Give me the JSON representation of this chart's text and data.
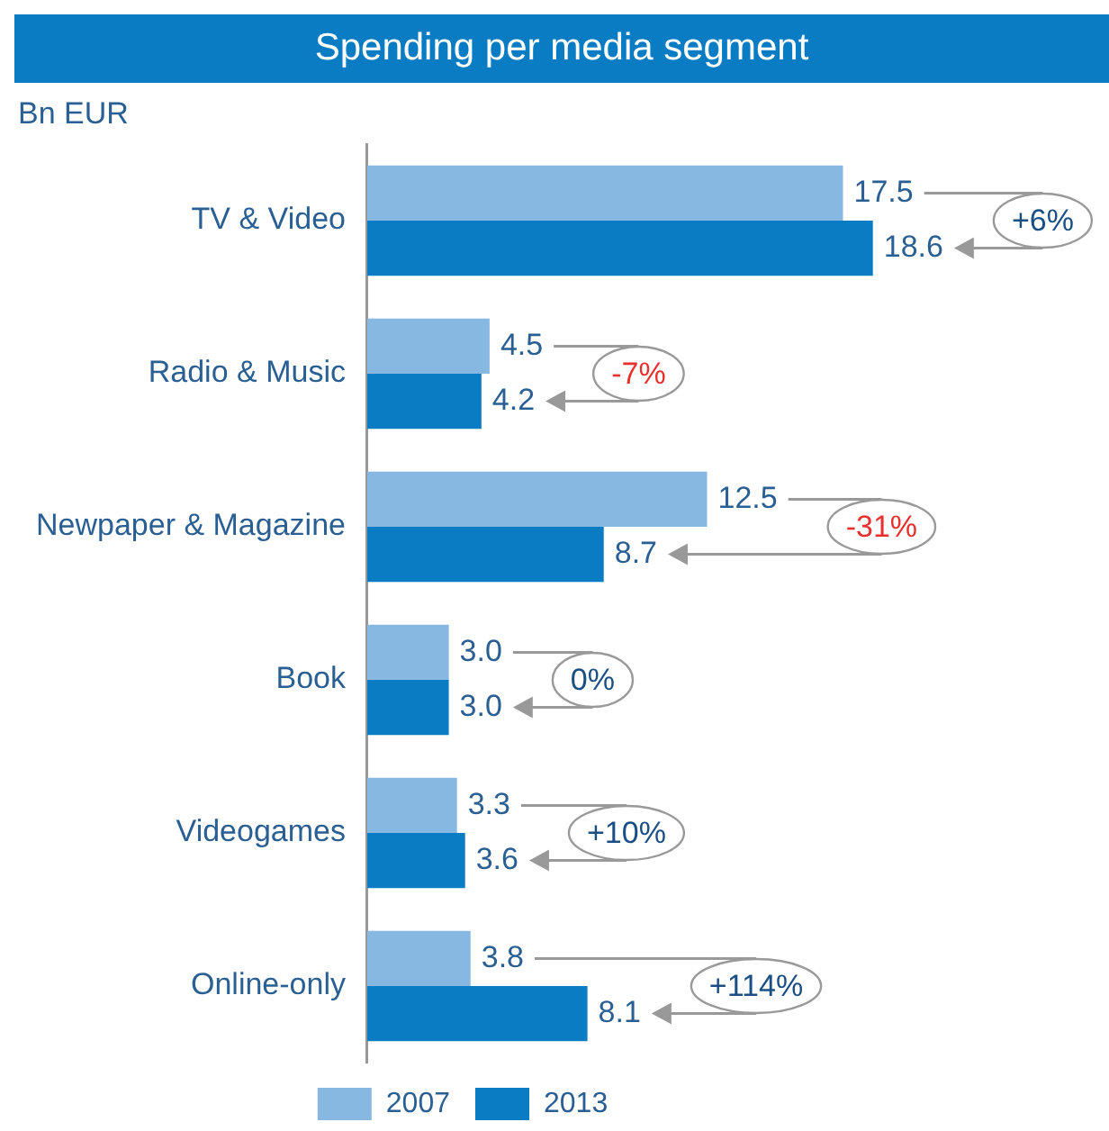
{
  "chart_data": {
    "type": "bar",
    "orientation": "horizontal",
    "title": "Spending per media segment",
    "xlabel": "Bn EUR",
    "categories": [
      "TV & Video",
      "Radio & Music",
      "Newpaper & Magazine",
      "Book",
      "Videogames",
      "Online-only"
    ],
    "series": [
      {
        "name": "2007",
        "color": "#86b8e2",
        "values": [
          17.5,
          4.5,
          12.5,
          3.0,
          3.3,
          3.8
        ],
        "value_labels": [
          "17.5",
          "4.5",
          "12.5",
          "3.0",
          "3.3",
          "3.8"
        ]
      },
      {
        "name": "2013",
        "color": "#0a7cc4",
        "values": [
          18.6,
          4.2,
          8.7,
          3.0,
          3.6,
          8.1
        ],
        "value_labels": [
          "18.6",
          "4.2",
          "8.7",
          "3.0",
          "3.6",
          "8.1"
        ]
      }
    ],
    "tick_labels": "y",
    "legend": "bottom",
    "annotations": [
      "+6%",
      "-7%",
      "-31%",
      "0%",
      "+10%",
      "+114%"
    ]
  }
}
